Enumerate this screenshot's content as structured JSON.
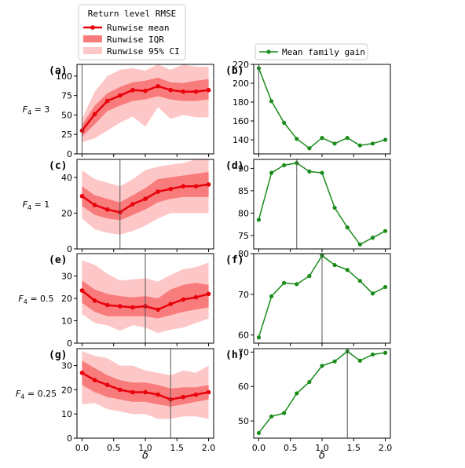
{
  "chart_data": {
    "type": "line",
    "x": [
      0.0,
      0.2,
      0.4,
      0.6,
      0.8,
      1.0,
      1.2,
      1.4,
      1.6,
      1.8,
      2.0
    ],
    "xlabel": "δ",
    "x_ticks": [
      "0.0",
      "0.5",
      "1.0",
      "1.5",
      "2.0"
    ],
    "legend_left": {
      "title": "Return level RMSE",
      "items": [
        "Runwise mean",
        "Runwise IQR",
        "Runwise 95% CI"
      ]
    },
    "legend_right": {
      "items": [
        "Mean family gain"
      ]
    },
    "colors": {
      "mean": "#e8000b",
      "iqr": "#f97c7c",
      "ci": "#fdc7c7",
      "gain": "#1a8c1a",
      "vline": "#555555"
    },
    "rows": [
      {
        "row_label": "F4 = 3",
        "row_label_parts": [
          "F",
          "4",
          " = 3"
        ],
        "left": {
          "panel_label": "(a)",
          "ylim": [
            0,
            115
          ],
          "yticks": [
            "0",
            "25",
            "50",
            "75",
            "100"
          ],
          "mean": [
            30,
            51,
            68,
            75,
            82,
            81,
            87,
            82,
            80,
            80,
            82
          ],
          "iqr_low": [
            22,
            38,
            55,
            62,
            68,
            70,
            74,
            70,
            68,
            68,
            70
          ],
          "iqr_high": [
            37,
            62,
            78,
            86,
            92,
            94,
            98,
            92,
            91,
            94,
            96
          ],
          "ci_low": [
            15,
            20,
            30,
            40,
            48,
            35,
            60,
            45,
            50,
            47,
            47
          ],
          "ci_high": [
            45,
            80,
            100,
            108,
            110,
            107,
            115,
            108,
            115,
            112,
            112
          ],
          "vline": 0.0
        },
        "right": {
          "panel_label": "(b)",
          "ylim": [
            125,
            220
          ],
          "yticks": [
            "140",
            "160",
            "180",
            "200",
            "220"
          ],
          "gain": [
            216,
            181,
            158,
            141,
            131,
            142,
            136,
            142,
            134,
            136,
            140
          ],
          "vline": 0.0
        }
      },
      {
        "row_label": "F4 = 1",
        "row_label_parts": [
          "F",
          "4",
          " = 1"
        ],
        "left": {
          "panel_label": "(c)",
          "ylim": [
            0,
            50
          ],
          "yticks": [
            "0",
            "20",
            "40"
          ],
          "mean": [
            29.5,
            24.5,
            22,
            20.5,
            25,
            28,
            32,
            33.5,
            35,
            35,
            36
          ],
          "iqr_low": [
            24,
            19,
            17,
            16,
            19,
            22,
            26,
            28,
            29,
            29,
            29
          ],
          "iqr_high": [
            35,
            30,
            28,
            26,
            30,
            34,
            39,
            40,
            41,
            42,
            43
          ],
          "ci_low": [
            17,
            11,
            9,
            8,
            10,
            13,
            17,
            20,
            20,
            20,
            20
          ],
          "ci_high": [
            44,
            39,
            37,
            35,
            39,
            44,
            46,
            47,
            48,
            50,
            50
          ],
          "vline": 0.6
        },
        "right": {
          "panel_label": "(d)",
          "ylim": [
            72,
            92
          ],
          "yticks": [
            "75",
            "80",
            "85",
            "90"
          ],
          "gain": [
            78.5,
            89,
            90.7,
            91.2,
            89.3,
            89,
            81.2,
            76.8,
            73,
            74.5,
            76
          ],
          "vline": 0.6
        }
      },
      {
        "row_label": "F4 = 0.5",
        "row_label_parts": [
          "F",
          "4",
          " = 0.5"
        ],
        "left": {
          "panel_label": "(e)",
          "ylim": [
            0,
            40
          ],
          "yticks": [
            "0",
            "10",
            "20",
            "30"
          ],
          "mean": [
            23.5,
            19,
            17,
            16.5,
            16,
            16.5,
            15,
            17.5,
            19.5,
            20.5,
            22
          ],
          "iqr_low": [
            18,
            14,
            12,
            12,
            12,
            12,
            11,
            12.5,
            14,
            15,
            16
          ],
          "iqr_high": [
            28,
            24,
            22,
            21,
            20.5,
            21,
            20,
            24,
            26,
            27,
            26
          ],
          "ci_low": [
            13,
            9,
            8,
            5.5,
            8,
            7,
            4.5,
            6,
            7,
            9,
            11
          ],
          "ci_high": [
            37,
            35,
            31,
            28,
            28.5,
            29,
            27.5,
            30.5,
            33,
            34,
            36
          ],
          "vline": 1.0
        },
        "right": {
          "panel_label": "(f)",
          "ylim": [
            58,
            80
          ],
          "yticks": [
            "60",
            "70",
            "80"
          ],
          "gain": [
            59.4,
            69.5,
            72.8,
            72.5,
            74.5,
            79.5,
            77.2,
            76,
            73.3,
            70.2,
            71.8
          ],
          "vline": 1.0
        }
      },
      {
        "row_label": "F4 = 0.25",
        "row_label_parts": [
          "F",
          "4",
          " = 0.25"
        ],
        "left": {
          "panel_label": "(g)",
          "ylim": [
            0,
            37
          ],
          "yticks": [
            "0",
            "10",
            "20",
            "30"
          ],
          "mean": [
            27,
            24,
            22,
            20,
            19,
            19,
            18,
            16,
            17,
            18,
            19
          ],
          "iqr_low": [
            22,
            19,
            17,
            16,
            15,
            15,
            14,
            13,
            14,
            15,
            16
          ],
          "iqr_high": [
            32,
            29,
            26,
            24,
            23,
            23,
            22,
            20.5,
            21,
            21,
            22
          ],
          "ci_low": [
            14,
            14.5,
            12,
            11,
            10,
            10,
            8,
            8,
            9,
            9,
            8
          ],
          "ci_high": [
            36,
            34,
            33,
            30,
            30,
            28,
            27,
            26,
            28,
            27,
            30
          ],
          "vline": 1.4
        },
        "right": {
          "panel_label": "(h)",
          "ylim": [
            45,
            71
          ],
          "yticks": [
            "50",
            "60",
            "70"
          ],
          "gain": [
            46.5,
            51.3,
            52.3,
            58,
            61.3,
            66,
            67.3,
            70.2,
            67.5,
            69.3,
            69.8
          ],
          "vline": 1.4
        }
      }
    ]
  }
}
